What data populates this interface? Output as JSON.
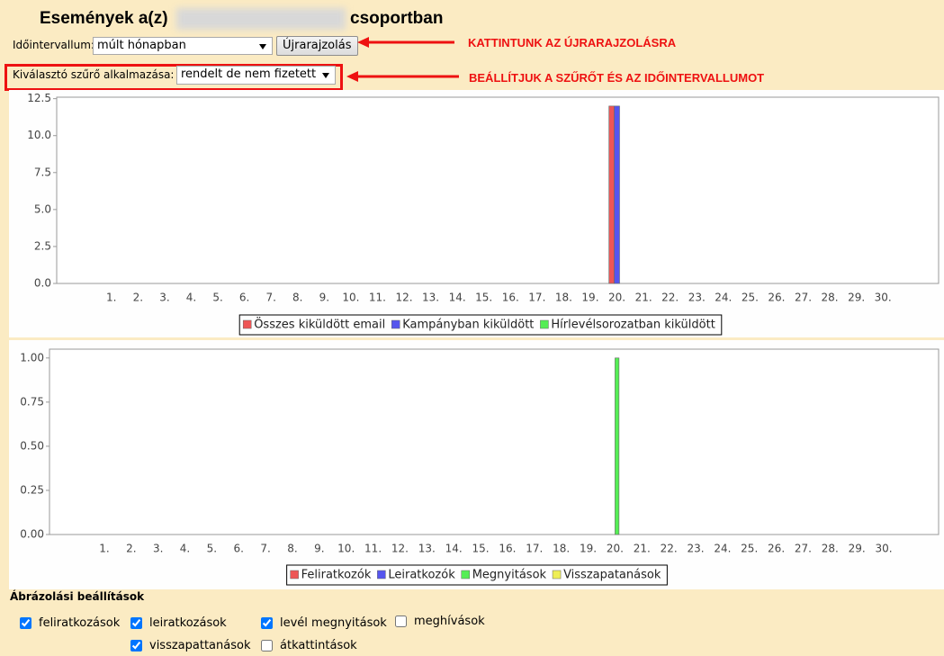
{
  "header": {
    "title_start": "Események a(z)",
    "title_end": "csoportban"
  },
  "controls": {
    "interval_label": "Időintervallum:",
    "interval_value": "múlt hónapban",
    "redraw_button": "Újrarajzolás",
    "filter_label": "Kiválasztó szűrő alkalmazása:",
    "filter_value": "rendelt de nem fizetett"
  },
  "annotations": [
    "KATTINTUNK AZ ÚJRARAJZOLÁSRA",
    "BEÁLLÍTJUK A SZŰRŐT  ÉS AZ IDŐINTERVALLUMOT"
  ],
  "chart_data": [
    {
      "type": "bar",
      "categories": [
        "1.",
        "2.",
        "3.",
        "4.",
        "5.",
        "6.",
        "7.",
        "8.",
        "9.",
        "10.",
        "11.",
        "12.",
        "13.",
        "14.",
        "15.",
        "16.",
        "17.",
        "18.",
        "19.",
        "20.",
        "21.",
        "22.",
        "23.",
        "24.",
        "25.",
        "26.",
        "27.",
        "28.",
        "29.",
        "30."
      ],
      "series": [
        {
          "name": "Összes kiküldött email",
          "color": "#ee5555",
          "values": [
            0,
            0,
            0,
            0,
            0,
            0,
            0,
            0,
            0,
            0,
            0,
            0,
            0,
            0,
            0,
            0,
            0,
            0,
            0,
            12,
            0,
            0,
            0,
            0,
            0,
            0,
            0,
            0,
            0,
            0
          ]
        },
        {
          "name": "Kampányban kiküldött",
          "color": "#5555ee",
          "values": [
            0,
            0,
            0,
            0,
            0,
            0,
            0,
            0,
            0,
            0,
            0,
            0,
            0,
            0,
            0,
            0,
            0,
            0,
            0,
            12,
            0,
            0,
            0,
            0,
            0,
            0,
            0,
            0,
            0,
            0
          ]
        },
        {
          "name": "Hírlevélsorozatban kiküldött",
          "color": "#55ee55",
          "values": [
            0,
            0,
            0,
            0,
            0,
            0,
            0,
            0,
            0,
            0,
            0,
            0,
            0,
            0,
            0,
            0,
            0,
            0,
            0,
            0,
            0,
            0,
            0,
            0,
            0,
            0,
            0,
            0,
            0,
            0
          ]
        }
      ],
      "ylim": [
        0,
        12.6
      ],
      "yticks": [
        {
          "value": 0,
          "label": "0.0"
        },
        2.5,
        {
          "value": 5,
          "label": "5.0"
        },
        7.5,
        {
          "value": 10,
          "label": "10.0"
        },
        12.5
      ],
      "legend": "bottom"
    },
    {
      "type": "bar",
      "categories": [
        "1.",
        "2.",
        "3.",
        "4.",
        "5.",
        "6.",
        "7.",
        "8.",
        "9.",
        "10.",
        "11.",
        "12.",
        "13.",
        "14.",
        "15.",
        "16.",
        "17.",
        "18.",
        "19.",
        "20.",
        "21.",
        "22.",
        "23.",
        "24.",
        "25.",
        "26.",
        "27.",
        "28.",
        "29.",
        "30."
      ],
      "series": [
        {
          "name": "Feliratkozók",
          "color": "#ee5555",
          "values": [
            0,
            0,
            0,
            0,
            0,
            0,
            0,
            0,
            0,
            0,
            0,
            0,
            0,
            0,
            0,
            0,
            0,
            0,
            0,
            0,
            0,
            0,
            0,
            0,
            0,
            0,
            0,
            0,
            0,
            0
          ]
        },
        {
          "name": "Leiratkozók",
          "color": "#5555ee",
          "values": [
            0,
            0,
            0,
            0,
            0,
            0,
            0,
            0,
            0,
            0,
            0,
            0,
            0,
            0,
            0,
            0,
            0,
            0,
            0,
            0,
            0,
            0,
            0,
            0,
            0,
            0,
            0,
            0,
            0,
            0
          ]
        },
        {
          "name": "Megnyitások",
          "color": "#55ee55",
          "values": [
            0,
            0,
            0,
            0,
            0,
            0,
            0,
            0,
            0,
            0,
            0,
            0,
            0,
            0,
            0,
            0,
            0,
            0,
            0,
            1,
            0,
            0,
            0,
            0,
            0,
            0,
            0,
            0,
            0,
            0
          ]
        },
        {
          "name": "Visszapatanások",
          "color": "#eeee55",
          "values": [
            0,
            0,
            0,
            0,
            0,
            0,
            0,
            0,
            0,
            0,
            0,
            0,
            0,
            0,
            0,
            0,
            0,
            0,
            0,
            0,
            0,
            0,
            0,
            0,
            0,
            0,
            0,
            0,
            0,
            0
          ]
        }
      ],
      "ylim": [
        0,
        1.05
      ],
      "yticks": [
        {
          "value": 0,
          "label": "0.00"
        },
        0.25,
        {
          "value": 0.5,
          "label": "0.50"
        },
        0.75,
        {
          "value": 1,
          "label": "1.00"
        }
      ],
      "legend": "bottom"
    }
  ],
  "settings": {
    "title": "Ábrázolási beállítások",
    "options": [
      {
        "label": "feliratkozások",
        "checked": true
      },
      {
        "label": "leiratkozások",
        "checked": true
      },
      {
        "label": "levél megnyitások",
        "checked": true
      },
      {
        "label": "meghívások",
        "checked": false
      },
      {
        "label": "visszapattanások",
        "checked": true
      },
      {
        "label": "átkattintások",
        "checked": false
      }
    ]
  }
}
